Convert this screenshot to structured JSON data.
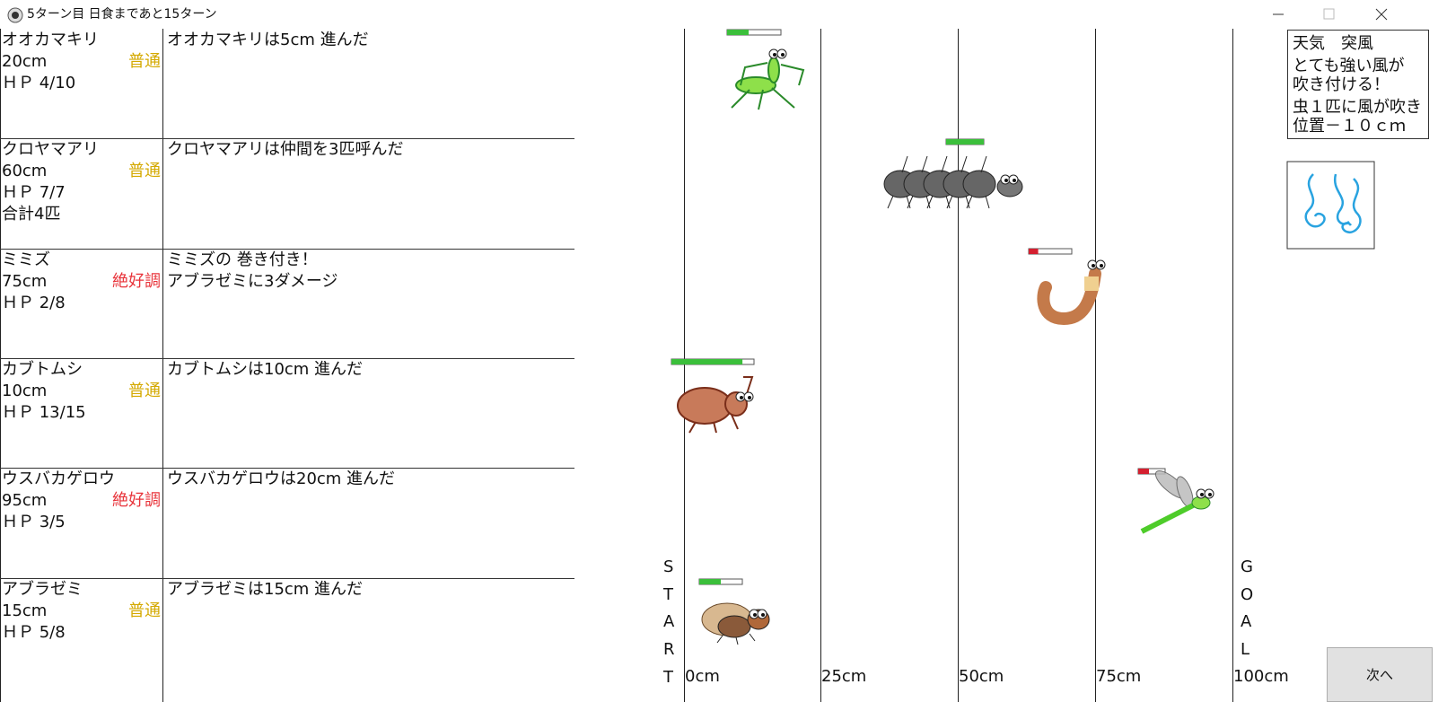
{
  "window": {
    "title": "5ターン目 日食まであと15ターン"
  },
  "insects": [
    {
      "name": "オオカマキリ",
      "distance": "20cm",
      "condition": "普通",
      "condition_color": "#d4a900",
      "hp": "ＨＰ 4/10",
      "message": [
        "オオカマキリは5cm 進んだ"
      ]
    },
    {
      "name": "クロヤマアリ",
      "distance": "60cm",
      "condition": "普通",
      "condition_color": "#d4a900",
      "hp": "ＨＰ 7/7",
      "extra": "合計4匹",
      "message": [
        "クロヤマアリは仲間を3匹呼んだ"
      ]
    },
    {
      "name": "ミミズ",
      "distance": "75cm",
      "condition": "絶好調",
      "condition_color": "#e8333a",
      "hp": "ＨＰ 2/8",
      "message": [
        "ミミズの 巻き付き！",
        "アブラゼミに3ダメージ"
      ]
    },
    {
      "name": "カブトムシ",
      "distance": "10cm",
      "condition": "普通",
      "condition_color": "#d4a900",
      "hp": "ＨＰ 13/15",
      "message": [
        "カブトムシは10cm 進んだ"
      ]
    },
    {
      "name": "ウスバカゲロウ",
      "distance": "95cm",
      "condition": "絶好調",
      "condition_color": "#e8333a",
      "hp": "ＨＰ 3/5",
      "message": [
        "ウスバカゲロウは20cm 進んだ"
      ]
    },
    {
      "name": "アブラゼミ",
      "distance": "15cm",
      "condition": "普通",
      "condition_color": "#d4a900",
      "hp": "ＨＰ 5/8",
      "message": [
        "アブラゼミは15cm 進んだ"
      ]
    }
  ],
  "track": {
    "labels": [
      "0cm",
      "25cm",
      "50cm",
      "75cm",
      "100cm"
    ],
    "start": [
      "S",
      "T",
      "A",
      "R",
      "T"
    ],
    "goal": [
      "G",
      "O",
      "A",
      "L"
    ]
  },
  "weather": {
    "lines": [
      "天気　突風",
      "とても強い風が",
      "吹き付ける！",
      "虫１匹に風が吹き",
      "位置－１０ｃｍ"
    ]
  },
  "button": "次へ"
}
